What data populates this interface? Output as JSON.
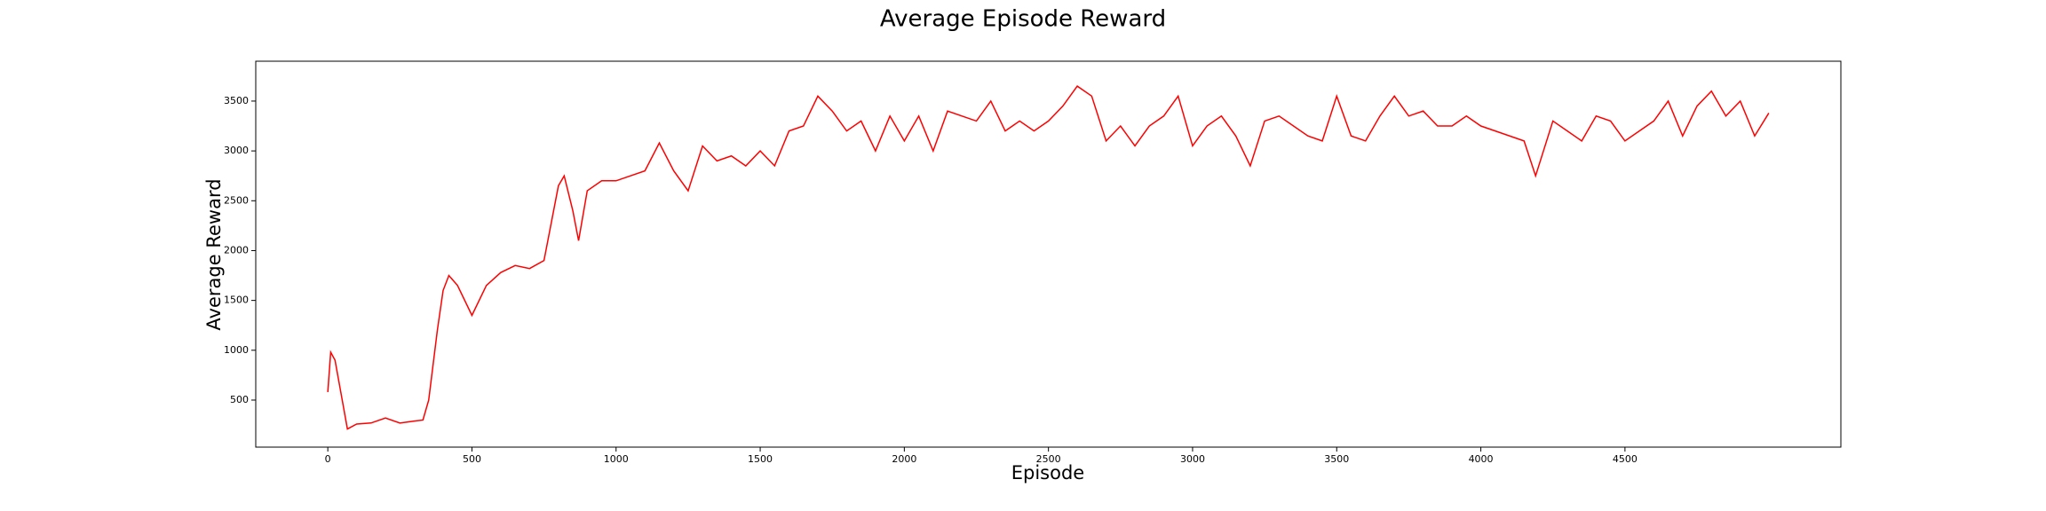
{
  "chart_data": {
    "type": "line",
    "title": "Average Episode Reward",
    "x_label": "Episode",
    "y_label": "Average Reward",
    "x": [
      0,
      10,
      25,
      50,
      68,
      100,
      150,
      200,
      250,
      300,
      330,
      350,
      380,
      400,
      420,
      450,
      500,
      550,
      600,
      650,
      700,
      750,
      800,
      820,
      850,
      870,
      900,
      950,
      1000,
      1050,
      1100,
      1150,
      1200,
      1250,
      1300,
      1350,
      1400,
      1450,
      1500,
      1550,
      1600,
      1650,
      1700,
      1750,
      1800,
      1850,
      1900,
      1950,
      2000,
      2050,
      2100,
      2150,
      2200,
      2250,
      2300,
      2350,
      2400,
      2450,
      2500,
      2550,
      2600,
      2650,
      2700,
      2750,
      2800,
      2850,
      2900,
      2950,
      3000,
      3050,
      3100,
      3150,
      3200,
      3250,
      3300,
      3350,
      3400,
      3450,
      3500,
      3550,
      3600,
      3650,
      3700,
      3750,
      3800,
      3850,
      3900,
      3950,
      4000,
      4050,
      4100,
      4150,
      4190,
      4250,
      4300,
      4350,
      4400,
      4450,
      4500,
      4550,
      4600,
      4650,
      4700,
      4750,
      4800,
      4850,
      4900,
      4950,
      4999
    ],
    "series": [
      {
        "name": "Average Reward",
        "color": "#ff0000",
        "values": [
          580,
          980,
          900,
          500,
          210,
          260,
          270,
          320,
          270,
          290,
          300,
          500,
          1200,
          1600,
          1750,
          1650,
          1350,
          1650,
          1780,
          1850,
          1820,
          1900,
          2650,
          2750,
          2400,
          2100,
          2600,
          2700,
          2700,
          2750,
          2800,
          3080,
          2800,
          2600,
          3050,
          2900,
          2950,
          2850,
          3000,
          2850,
          3200,
          3250,
          3550,
          3400,
          3200,
          3300,
          3000,
          3350,
          3100,
          3350,
          3000,
          3400,
          3350,
          3300,
          3500,
          3200,
          3300,
          3200,
          3300,
          3450,
          3650,
          3550,
          3100,
          3250,
          3050,
          3250,
          3350,
          3550,
          3050,
          3250,
          3350,
          3150,
          2850,
          3300,
          3350,
          3250,
          3150,
          3100,
          3550,
          3150,
          3100,
          3350,
          3550,
          3350,
          3400,
          3250,
          3250,
          3350,
          3250,
          3200,
          3150,
          3100,
          2750,
          3300,
          3200,
          3100,
          3350,
          3300,
          3100,
          3200,
          3300,
          3500,
          3150,
          3450,
          3600,
          3350,
          3500,
          3150,
          3380
        ]
      }
    ],
    "xlim": [
      -250,
      5249
    ],
    "xticks": [
      0,
      500,
      1000,
      1500,
      2000,
      2500,
      3000,
      3500,
      4000,
      4500
    ],
    "ylim": [
      28,
      3900
    ],
    "yticks": [
      500,
      1000,
      1500,
      2000,
      2500,
      3000,
      3500
    ],
    "grid": false
  }
}
